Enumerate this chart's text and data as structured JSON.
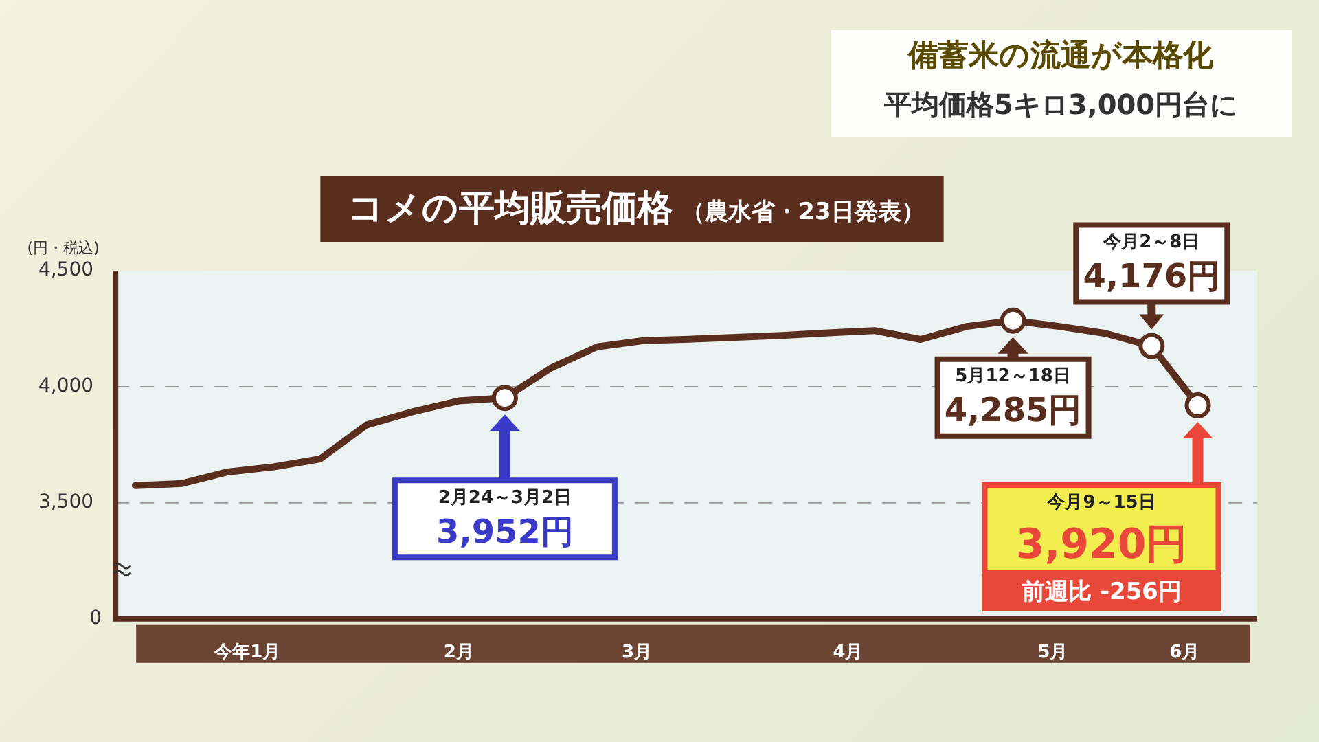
{
  "chart_data": {
    "type": "line",
    "title": "コメの平均販売価格",
    "subtitle": "（農水省・23日発表）",
    "ylabel": "(円・税込)",
    "x": [
      "--01-05",
      "--01-12",
      "--01-19",
      "--01-26",
      "--02-02",
      "--02-09",
      "--02-16",
      "--02-23",
      "--03-02",
      "--03-09",
      "--03-16",
      "--03-23",
      "--03-30",
      "--04-06",
      "--04-13",
      "--04-20",
      "--04-27",
      "--05-04",
      "--05-11",
      "--05-18",
      "--05-25",
      "--06-01",
      "--06-08",
      "--06-15"
    ],
    "series": [
      {
        "color": "#5a2e1e",
        "values": [
          3574,
          3583,
          3633,
          3655,
          3689,
          3835,
          3892,
          3939,
          3952,
          4081,
          4172,
          4199,
          4205,
          4213,
          4221,
          4232,
          4242,
          4204,
          4260,
          4285,
          4260,
          4230,
          4176,
          3920
        ]
      }
    ],
    "xlim": [
      "--01-02",
      "--06-24"
    ],
    "xticks": [
      {
        "value": "--01-22",
        "label": "今年1月"
      },
      {
        "value": "--02-23",
        "label": "2月"
      },
      {
        "value": "--03-22",
        "label": "3月"
      },
      {
        "value": "--04-23",
        "label": "4月"
      },
      {
        "value": "--05-24",
        "label": "5月"
      },
      {
        "value": "--06-13",
        "label": "6月"
      }
    ],
    "ylim": [
      3000,
      4500
    ],
    "yticks": [
      {
        "value": 3500,
        "label": "3,500"
      },
      {
        "value": 4000,
        "label": "4,000"
      },
      {
        "value": 4500,
        "label": "4,500"
      }
    ],
    "grid": "y",
    "line_style": "solid",
    "legend": false,
    "annotations": [
      "備蓄米の流通が本格化",
      "平均価格5キロ3,000円台に",
      "0",
      {
        "text": "2月24～3月2日\n3,952円",
        "x": "--03-02",
        "y": 3952
      },
      {
        "text": "5月12～18日\n4,285円",
        "x": "--05-18",
        "y": 4285
      },
      {
        "text": "今月2～8日\n4,176円",
        "x": "--06-08",
        "y": 4176
      },
      {
        "text": "今月9～15日\n3,920円",
        "x": "--06-15",
        "y": 3920
      },
      "前週比 -256円"
    ]
  }
}
